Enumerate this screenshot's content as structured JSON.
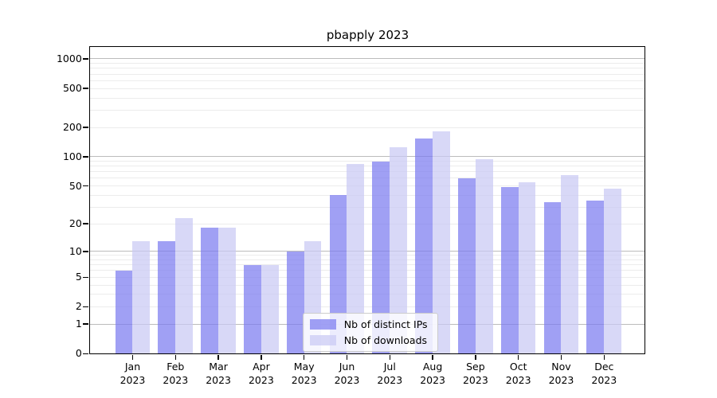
{
  "chart_data": {
    "type": "bar",
    "title": "pbapply 2023",
    "categories": [
      "Jan",
      "Feb",
      "Mar",
      "Apr",
      "May",
      "Jun",
      "Jul",
      "Aug",
      "Sep",
      "Oct",
      "Nov",
      "Dec"
    ],
    "category_year": "2023",
    "series": [
      {
        "name": "Nb of distinct IPs",
        "color": "#7b7bf0",
        "values": [
          6,
          13,
          18,
          7,
          10,
          40,
          90,
          155,
          60,
          49,
          34,
          35
        ]
      },
      {
        "name": "Nb of downloads",
        "color": "#c9c9f4",
        "values": [
          13,
          23,
          18,
          7,
          13,
          85,
          125,
          182,
          95,
          55,
          65,
          47
        ]
      }
    ],
    "yscale": "log1p",
    "ylim": [
      0,
      1320
    ],
    "yticks": [
      0,
      1,
      2,
      5,
      10,
      20,
      50,
      100,
      200,
      500,
      1000
    ],
    "major_gridlines": [
      1,
      10,
      100,
      1000
    ],
    "minor_gridlines": [
      2,
      3,
      4,
      5,
      6,
      7,
      8,
      9,
      20,
      30,
      40,
      50,
      60,
      70,
      80,
      90,
      200,
      300,
      400,
      500,
      600,
      700,
      800,
      900
    ],
    "grid": true,
    "legend_position": "lower center",
    "legend": [
      "Nb of distinct IPs",
      "Nb of downloads"
    ]
  },
  "colors": {
    "bar_distinct_ips_display": "#a3a3f0",
    "bar_downloads_display": "#d8d8f7",
    "major_grid": "#bcbcbc",
    "minor_grid": "#ececec",
    "axis": "#000000",
    "legend_border": "#cccccc"
  }
}
